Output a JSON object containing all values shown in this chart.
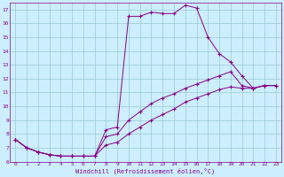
{
  "xlabel": "Windchill (Refroidissement éolien,°C)",
  "background_color": "#cceeff",
  "line_color": "#880088",
  "grid_color": "#99cccc",
  "xlim": [
    -0.5,
    23.5
  ],
  "ylim": [
    6,
    17.5
  ],
  "yticks": [
    6,
    7,
    8,
    9,
    10,
    11,
    12,
    13,
    14,
    15,
    16,
    17
  ],
  "xticks": [
    0,
    1,
    2,
    3,
    4,
    5,
    6,
    7,
    8,
    9,
    10,
    11,
    12,
    13,
    14,
    15,
    16,
    17,
    18,
    19,
    20,
    21,
    22,
    23
  ],
  "series": [
    {
      "x": [
        0,
        1,
        2,
        3,
        4,
        5,
        6,
        7,
        8,
        9,
        10,
        11,
        12,
        13,
        14,
        15,
        16,
        17,
        18,
        19,
        20,
        21,
        22,
        23
      ],
      "y": [
        7.6,
        7.0,
        6.7,
        6.5,
        6.4,
        6.4,
        6.4,
        6.4,
        8.3,
        8.5,
        16.5,
        16.5,
        16.8,
        16.7,
        16.7,
        17.3,
        17.1,
        15.0,
        13.8,
        13.2,
        12.2,
        11.3,
        11.5,
        11.5
      ]
    },
    {
      "x": [
        0,
        1,
        2,
        3,
        4,
        5,
        6,
        7,
        8,
        9,
        10,
        11,
        12,
        13,
        14,
        15,
        16,
        17,
        18,
        19,
        20,
        21,
        22,
        23
      ],
      "y": [
        7.6,
        7.0,
        6.7,
        6.5,
        6.4,
        6.4,
        6.4,
        6.4,
        7.8,
        8.0,
        9.0,
        9.6,
        10.2,
        10.6,
        10.9,
        11.3,
        11.6,
        11.9,
        12.2,
        12.5,
        11.5,
        11.3,
        11.5,
        11.5
      ]
    },
    {
      "x": [
        0,
        1,
        2,
        3,
        4,
        5,
        6,
        7,
        8,
        9,
        10,
        11,
        12,
        13,
        14,
        15,
        16,
        17,
        18,
        19,
        20,
        21,
        22,
        23
      ],
      "y": [
        7.6,
        7.0,
        6.7,
        6.5,
        6.4,
        6.4,
        6.4,
        6.4,
        7.2,
        7.4,
        8.0,
        8.5,
        9.0,
        9.4,
        9.8,
        10.3,
        10.6,
        10.9,
        11.2,
        11.4,
        11.3,
        11.3,
        11.5,
        11.5
      ]
    }
  ]
}
